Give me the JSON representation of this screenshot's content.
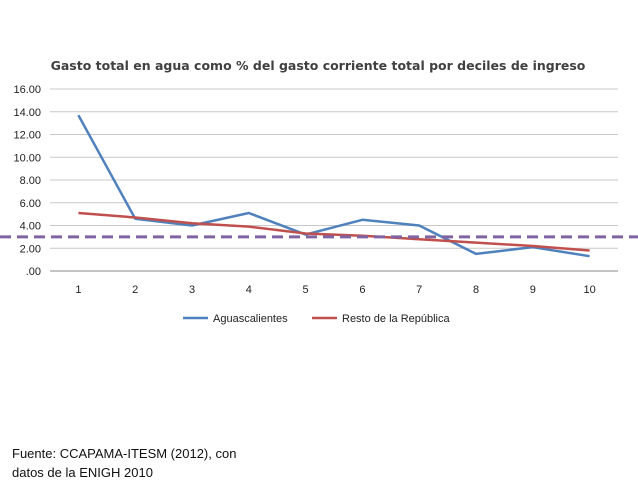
{
  "chart_data": {
    "type": "line",
    "title": "Gasto total en agua como % del gasto corriente total por deciles de ingreso",
    "categories": [
      "1",
      "2",
      "3",
      "4",
      "5",
      "6",
      "7",
      "8",
      "9",
      "10"
    ],
    "y_ticks": [
      "16.00",
      "14.00",
      "12.00",
      "10.00",
      "8.00",
      "6.00",
      "4.00",
      "2.00",
      ".00"
    ],
    "ylim": [
      0,
      16
    ],
    "grid": true,
    "legend_position": "bottom",
    "series": [
      {
        "name": "Aguascalientes",
        "color": "#4f81bd",
        "values": [
          13.7,
          4.6,
          4.0,
          5.1,
          3.2,
          4.5,
          4.0,
          1.5,
          2.1,
          1.3
        ]
      },
      {
        "name": "Resto de la República",
        "color": "#c0504d",
        "values": [
          5.1,
          4.7,
          4.2,
          3.9,
          3.3,
          3.1,
          2.8,
          2.5,
          2.2,
          1.8
        ]
      }
    ],
    "reference_line": {
      "value": 3.0,
      "style": "dashed",
      "color": "#8064a2"
    }
  },
  "source": {
    "line1": "Fuente: CCAPAMA-ITESM (2012), con",
    "line2": "datos de la ENIGH 2010"
  }
}
